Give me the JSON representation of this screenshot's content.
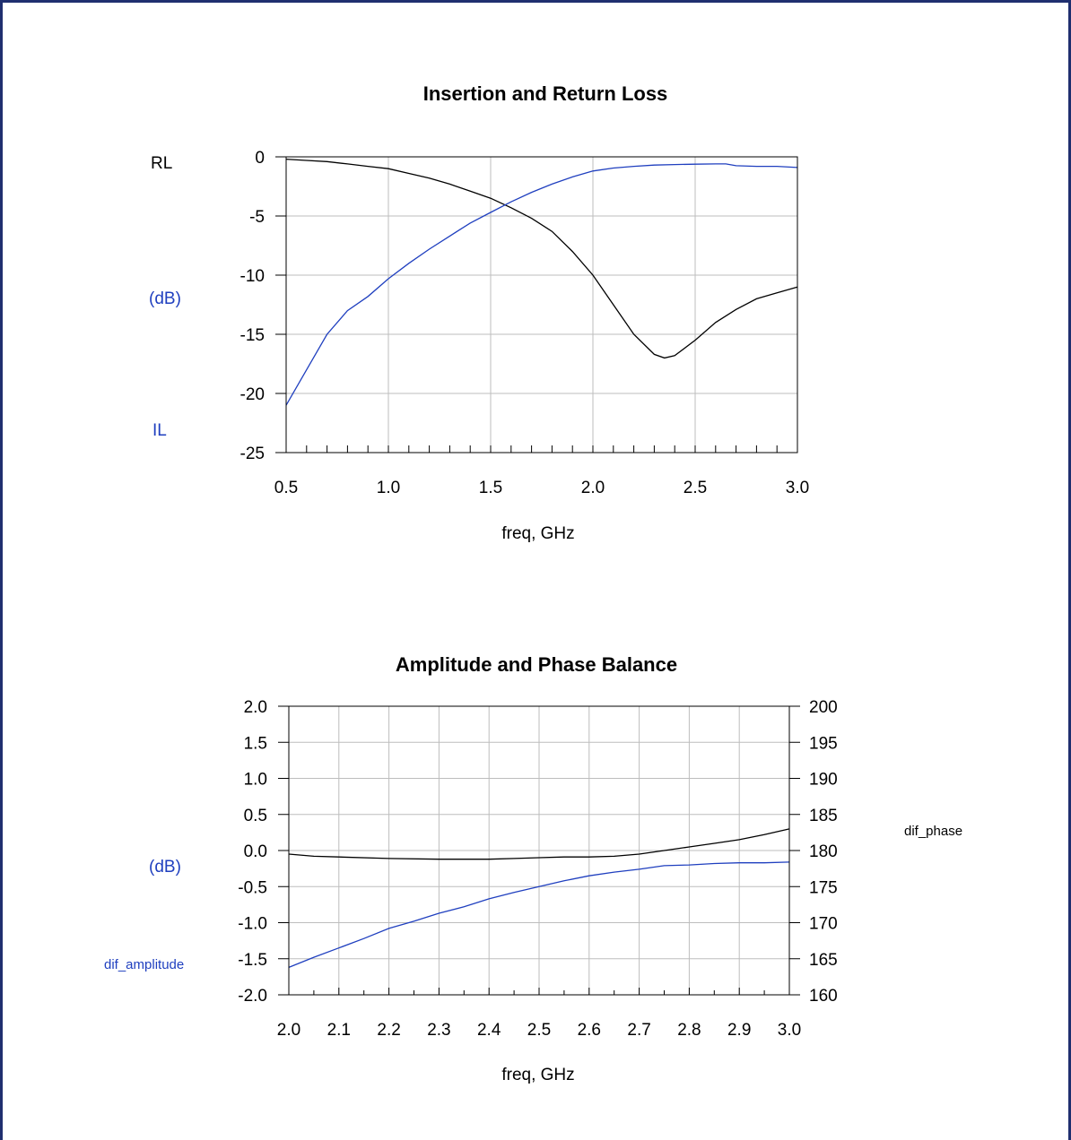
{
  "chart_data": [
    {
      "type": "line",
      "title": "Insertion and Return Loss",
      "xlabel": "freq, GHz",
      "left_labels": {
        "rl": "RL",
        "unit": "(dB)",
        "il": "IL"
      },
      "xlim": [
        0.5,
        3.0
      ],
      "ylim": [
        -25,
        0
      ],
      "xticks": [
        "0.5",
        "1.0",
        "1.5",
        "2.0",
        "2.5",
        "3.0"
      ],
      "yticks": [
        "0",
        "-5",
        "-10",
        "-15",
        "-20",
        "-25"
      ],
      "grid": true,
      "series": [
        {
          "key": "rl",
          "color": "#000000",
          "x": [
            0.5,
            0.6,
            0.7,
            0.8,
            0.9,
            1.0,
            1.1,
            1.2,
            1.3,
            1.4,
            1.5,
            1.6,
            1.7,
            1.8,
            1.9,
            2.0,
            2.1,
            2.2,
            2.3,
            2.35,
            2.4,
            2.5,
            2.6,
            2.7,
            2.8,
            2.9,
            3.0
          ],
          "y": [
            -0.2,
            -0.3,
            -0.4,
            -0.6,
            -0.8,
            -1.0,
            -1.4,
            -1.8,
            -2.3,
            -2.9,
            -3.5,
            -4.3,
            -5.2,
            -6.3,
            -8.0,
            -10.0,
            -12.5,
            -15.0,
            -16.7,
            -17.0,
            -16.8,
            -15.5,
            -14.0,
            -12.9,
            -12.0,
            -11.5,
            -11.0
          ]
        },
        {
          "key": "il",
          "color": "#1f3fbf",
          "x": [
            0.5,
            0.6,
            0.7,
            0.8,
            0.9,
            1.0,
            1.1,
            1.2,
            1.3,
            1.4,
            1.5,
            1.6,
            1.7,
            1.8,
            1.9,
            2.0,
            2.1,
            2.2,
            2.3,
            2.4,
            2.5,
            2.6,
            2.65,
            2.7,
            2.8,
            2.9,
            3.0
          ],
          "y": [
            -21.0,
            -18.0,
            -15.0,
            -13.0,
            -11.8,
            -10.3,
            -9.0,
            -7.8,
            -6.7,
            -5.6,
            -4.7,
            -3.8,
            -3.0,
            -2.3,
            -1.7,
            -1.2,
            -0.95,
            -0.8,
            -0.7,
            -0.65,
            -0.62,
            -0.6,
            -0.6,
            -0.75,
            -0.8,
            -0.8,
            -0.9
          ]
        }
      ]
    },
    {
      "type": "line",
      "title": "Amplitude and Phase Balance",
      "xlabel": "freq, GHz",
      "left_labels": {
        "unit": "(dB)",
        "amp": "dif_amplitude"
      },
      "right_label": "dif_phase",
      "xlim": [
        2.0,
        3.0
      ],
      "ylim_left": [
        -2.0,
        2.0
      ],
      "ylim_right": [
        160,
        200
      ],
      "xticks": [
        "2.0",
        "2.1",
        "2.2",
        "2.3",
        "2.4",
        "2.5",
        "2.6",
        "2.7",
        "2.8",
        "2.9",
        "3.0"
      ],
      "yticks_left": [
        "2.0",
        "1.5",
        "1.0",
        "0.5",
        "0.0",
        "-0.5",
        "-1.0",
        "-1.5",
        "-2.0"
      ],
      "yticks_right": [
        "200",
        "195",
        "190",
        "185",
        "180",
        "175",
        "170",
        "165",
        "160"
      ],
      "grid": true,
      "series": [
        {
          "key": "dif_phase",
          "axis": "right",
          "color": "#000000",
          "x": [
            2.0,
            2.05,
            2.1,
            2.2,
            2.3,
            2.4,
            2.45,
            2.5,
            2.55,
            2.6,
            2.65,
            2.7,
            2.75,
            2.8,
            2.85,
            2.9,
            2.95,
            3.0
          ],
          "y": [
            179.5,
            179.2,
            179.1,
            178.9,
            178.8,
            178.8,
            178.9,
            179.0,
            179.1,
            179.1,
            179.2,
            179.5,
            180.0,
            180.5,
            181.0,
            181.5,
            182.2,
            183.0
          ]
        },
        {
          "key": "dif_amplitude",
          "axis": "left",
          "color": "#1f3fbf",
          "x": [
            2.0,
            2.05,
            2.1,
            2.15,
            2.2,
            2.25,
            2.3,
            2.35,
            2.4,
            2.45,
            2.5,
            2.55,
            2.6,
            2.65,
            2.7,
            2.75,
            2.8,
            2.85,
            2.9,
            2.95,
            3.0
          ],
          "y": [
            -1.62,
            -1.48,
            -1.35,
            -1.22,
            -1.08,
            -0.98,
            -0.87,
            -0.78,
            -0.67,
            -0.58,
            -0.5,
            -0.42,
            -0.35,
            -0.3,
            -0.26,
            -0.21,
            -0.2,
            -0.18,
            -0.17,
            -0.17,
            -0.16
          ]
        }
      ]
    }
  ]
}
